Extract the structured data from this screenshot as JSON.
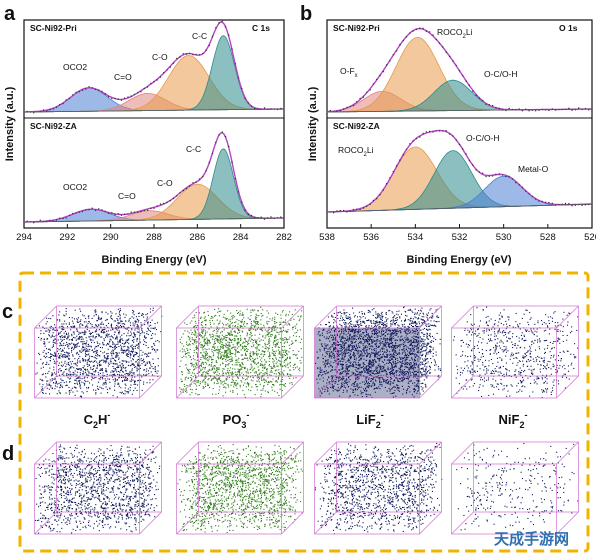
{
  "panels": {
    "a": {
      "label": "a",
      "core": "C 1s",
      "xlabel": "Binding Energy (eV)",
      "ylabel": "Intensity (a.u.)",
      "xticks": [
        "294",
        "292",
        "290",
        "288",
        "286",
        "284",
        "282"
      ],
      "top": {
        "sample": "SC-Ni92-Pri",
        "peaks": [
          "OCO2",
          "C=O",
          "C-O",
          "C-C"
        ]
      },
      "bottom": {
        "sample": "SC-Ni92-ZA",
        "peaks": [
          "OCO2",
          "C=O",
          "C-O",
          "C-C"
        ]
      }
    },
    "b": {
      "label": "b",
      "core": "O 1s",
      "xlabel": "Binding Energy (eV)",
      "ylabel": "Intensity (a.u.)",
      "xticks": [
        "538",
        "536",
        "534",
        "532",
        "530",
        "528",
        "526"
      ],
      "top": {
        "sample": "SC-Ni92-Pri",
        "peaks": [
          "O-F",
          "ROCO",
          "O-C/O-H"
        ],
        "peak_subs": [
          "x",
          "2",
          "Li"
        ]
      },
      "bottom": {
        "sample": "SC-Ni92-ZA",
        "peaks": [
          "ROCO",
          "O-C/O-H",
          "Metal-O"
        ],
        "peak_subs": [
          "2",
          "Li"
        ]
      }
    },
    "c": {
      "label": "c"
    },
    "d": {
      "label": "d"
    }
  },
  "ions": [
    {
      "base": "C",
      "sub": "2",
      "mid": "H",
      "sup": "-"
    },
    {
      "base": "PO",
      "sub": "3",
      "mid": "",
      "sup": "-"
    },
    {
      "base": "LiF",
      "sub": "2",
      "mid": "",
      "sup": "-"
    },
    {
      "base": "NiF",
      "sub": "2",
      "mid": "",
      "sup": "-"
    }
  ],
  "colors": {
    "peak_blue": "#4a7fd4",
    "peak_red": "#e0857f",
    "peak_orange": "#e89a4a",
    "peak_teal": "#2e8c8c",
    "envelope": "#b640c8",
    "frame_dashed": "#f0b400",
    "cube_navy": "#101a5a",
    "cube_green": "#2f7a1a",
    "cube_edge": "#d070d0"
  },
  "watermark": "天成手游网",
  "chart_data": [
    {
      "type": "area",
      "title": "C 1s",
      "xlabel": "Binding Energy (eV)",
      "ylabel": "Intensity (a.u.)",
      "xlim": [
        294,
        282
      ],
      "x_reversed": true,
      "stacked_panels": [
        {
          "name": "SC-Ni92-Pri",
          "components": [
            {
              "name": "OCO2",
              "center": 291.0,
              "fwhm": 2.0,
              "height": 0.3,
              "color": "#4a7fd4"
            },
            {
              "name": "C=O",
              "center": 288.3,
              "fwhm": 2.0,
              "height": 0.22,
              "color": "#e0857f"
            },
            {
              "name": "C-O",
              "center": 286.4,
              "fwhm": 2.2,
              "height": 0.7,
              "color": "#e89a4a"
            },
            {
              "name": "C-C",
              "center": 284.8,
              "fwhm": 1.2,
              "height": 0.95,
              "color": "#2e8c8c"
            }
          ]
        },
        {
          "name": "SC-Ni92-ZA",
          "components": [
            {
              "name": "OCO2",
              "center": 290.9,
              "fwhm": 2.0,
              "height": 0.15,
              "color": "#4a7fd4"
            },
            {
              "name": "C=O",
              "center": 288.2,
              "fwhm": 2.0,
              "height": 0.12,
              "color": "#e0857f"
            },
            {
              "name": "C-O",
              "center": 286.0,
              "fwhm": 2.2,
              "height": 0.45,
              "color": "#e89a4a"
            },
            {
              "name": "C-C",
              "center": 284.8,
              "fwhm": 1.1,
              "height": 0.9,
              "color": "#2e8c8c"
            }
          ]
        }
      ]
    },
    {
      "type": "area",
      "title": "O 1s",
      "xlabel": "Binding Energy (eV)",
      "ylabel": "Intensity (a.u.)",
      "xlim": [
        538,
        526
      ],
      "x_reversed": true,
      "stacked_panels": [
        {
          "name": "SC-Ni92-Pri",
          "components": [
            {
              "name": "O-Fx",
              "center": 535.5,
              "fwhm": 2.0,
              "height": 0.25,
              "color": "#e0857f"
            },
            {
              "name": "ROCO2Li",
              "center": 533.9,
              "fwhm": 2.3,
              "height": 0.92,
              "color": "#e89a4a"
            },
            {
              "name": "O-C/O-H",
              "center": 532.3,
              "fwhm": 2.0,
              "height": 0.38,
              "color": "#2e8c8c"
            }
          ]
        },
        {
          "name": "SC-Ni92-ZA",
          "components": [
            {
              "name": "ROCO2Li",
              "center": 534.0,
              "fwhm": 2.3,
              "height": 0.78,
              "color": "#e89a4a"
            },
            {
              "name": "O-C/O-H",
              "center": 532.3,
              "fwhm": 2.0,
              "height": 0.72,
              "color": "#2e8c8c"
            },
            {
              "name": "Metal-O",
              "center": 530.0,
              "fwhm": 2.0,
              "height": 0.38,
              "color": "#4a7fd4"
            }
          ]
        }
      ]
    }
  ]
}
